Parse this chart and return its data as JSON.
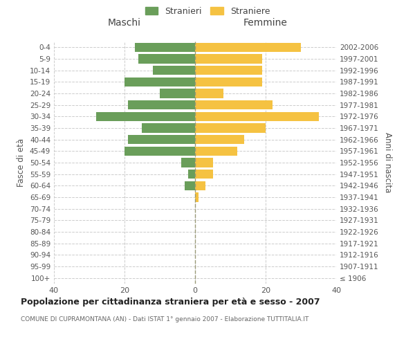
{
  "age_groups": [
    "100+",
    "95-99",
    "90-94",
    "85-89",
    "80-84",
    "75-79",
    "70-74",
    "65-69",
    "60-64",
    "55-59",
    "50-54",
    "45-49",
    "40-44",
    "35-39",
    "30-34",
    "25-29",
    "20-24",
    "15-19",
    "10-14",
    "5-9",
    "0-4"
  ],
  "birth_years": [
    "≤ 1906",
    "1907-1911",
    "1912-1916",
    "1917-1921",
    "1922-1926",
    "1927-1931",
    "1932-1936",
    "1937-1941",
    "1942-1946",
    "1947-1951",
    "1952-1956",
    "1957-1961",
    "1962-1966",
    "1967-1971",
    "1972-1976",
    "1977-1981",
    "1982-1986",
    "1987-1991",
    "1992-1996",
    "1997-2001",
    "2002-2006"
  ],
  "maschi": [
    0,
    0,
    0,
    0,
    0,
    0,
    0,
    0,
    3,
    2,
    4,
    20,
    19,
    15,
    28,
    19,
    10,
    20,
    12,
    16,
    17
  ],
  "femmine": [
    0,
    0,
    0,
    0,
    0,
    0,
    0,
    1,
    3,
    5,
    5,
    12,
    14,
    20,
    35,
    22,
    8,
    19,
    19,
    19,
    30
  ],
  "maschi_color": "#6a9e5a",
  "femmine_color": "#f5c242",
  "bg_color": "#ffffff",
  "grid_color": "#cccccc",
  "title": "Popolazione per cittadinanza straniera per età e sesso - 2007",
  "subtitle": "COMUNE DI CUPRAMONTANA (AN) - Dati ISTAT 1° gennaio 2007 - Elaborazione TUTTITALIA.IT",
  "xlabel_left": "Maschi",
  "xlabel_right": "Femmine",
  "ylabel_left": "Fasce di età",
  "ylabel_right": "Anni di nascita",
  "legend_stranieri": "Stranieri",
  "legend_straniere": "Straniere",
  "xlim": 40,
  "bar_height": 0.8
}
